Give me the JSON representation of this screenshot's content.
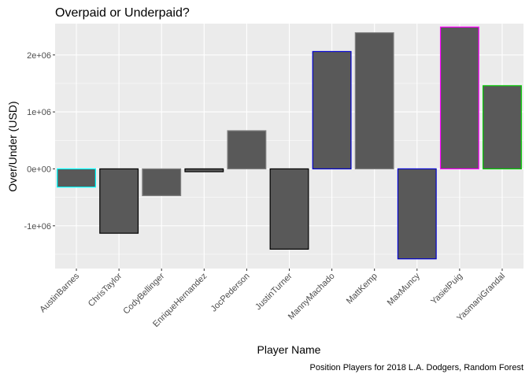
{
  "chart_data": {
    "type": "bar",
    "title": "Overpaid or Underpaid?",
    "xlabel": "Player Name",
    "ylabel": "Over/Under (USD)",
    "caption": "Position Players for 2018 L.A. Dodgers, Random Forest",
    "categories": [
      "AustinBarnes",
      "ChrisTaylor",
      "CodyBellinger",
      "EnriqueHernandez",
      "JocPederson",
      "JustinTurner",
      "MannyMachado",
      "MattKemp",
      "MaxMuncy",
      "YasielPuig",
      "YasmaniGrandal"
    ],
    "values": [
      -320000,
      -1130000,
      -470000,
      -50000,
      670000,
      -1410000,
      2060000,
      2390000,
      -1580000,
      2490000,
      1460000
    ],
    "outline_colors": [
      "#00ffff",
      "#000000",
      "#808080",
      "#000000",
      "#808080",
      "#000000",
      "#0000cc",
      "#808080",
      "#0000cc",
      "#ff00ff",
      "#00cc00"
    ],
    "bar_fill": "#595959",
    "panel_background": "#ebebeb",
    "ylim": [
      -1750000,
      2550000
    ],
    "yticks": [
      -1000000,
      0,
      1000000,
      2000000
    ],
    "ytick_labels": [
      "-1e+06",
      "0e+00",
      "1e+06",
      "2e+06"
    ],
    "grid": true,
    "legend": "none"
  }
}
